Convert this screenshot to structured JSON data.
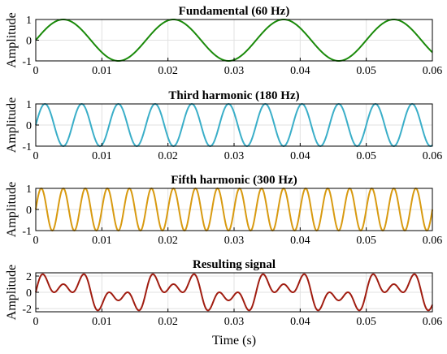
{
  "chart_data": [
    {
      "type": "line",
      "title": "Fundamental (60 Hz)",
      "ylabel": "Amplitude",
      "xlabel": "",
      "xlim": [
        0,
        0.06
      ],
      "ylim": [
        -1,
        1
      ],
      "xticks": [
        "0",
        "0.01",
        "0.02",
        "0.03",
        "0.04",
        "0.05",
        "0.06"
      ],
      "yticks": [
        "1",
        "0",
        "-1"
      ],
      "grid": true,
      "series": [
        {
          "function": "sin(2*pi*60*t)",
          "frequency_hz": 60,
          "amplitude": 1,
          "color": "#1a8a0a"
        }
      ]
    },
    {
      "type": "line",
      "title": "Third harmonic (180 Hz)",
      "ylabel": "Amplitude",
      "xlabel": "",
      "xlim": [
        0,
        0.06
      ],
      "ylim": [
        -1,
        1
      ],
      "xticks": [
        "0",
        "0.01",
        "0.02",
        "0.03",
        "0.04",
        "0.05",
        "0.06"
      ],
      "yticks": [
        "1",
        "0",
        "-1"
      ],
      "grid": true,
      "series": [
        {
          "function": "sin(2*pi*180*t)",
          "frequency_hz": 180,
          "amplitude": 1,
          "color": "#3aaec8"
        }
      ]
    },
    {
      "type": "line",
      "title": "Fifth harmonic (300 Hz)",
      "ylabel": "Amplitude",
      "xlabel": "",
      "xlim": [
        0,
        0.06
      ],
      "ylim": [
        -1,
        1
      ],
      "xticks": [
        "0",
        "0.01",
        "0.02",
        "0.03",
        "0.04",
        "0.05",
        "0.06"
      ],
      "yticks": [
        "1",
        "0",
        "-1"
      ],
      "grid": true,
      "series": [
        {
          "function": "sin(2*pi*300*t)",
          "frequency_hz": 300,
          "amplitude": 1,
          "color": "#d89a10"
        }
      ]
    },
    {
      "type": "line",
      "title": "Resulting signal",
      "ylabel": "Amplitude",
      "xlabel": "Time (s)",
      "xlim": [
        0,
        0.06
      ],
      "ylim": [
        -2.4,
        2.4
      ],
      "xticks": [
        "0",
        "0.01",
        "0.02",
        "0.03",
        "0.04",
        "0.05",
        "0.06"
      ],
      "yticks": [
        "2",
        "0",
        "-2"
      ],
      "grid": true,
      "series": [
        {
          "function": "sin(2*pi*60*t) + sin(2*pi*180*t) + sin(2*pi*300*t)",
          "components_hz": [
            60,
            180,
            300
          ],
          "color": "#a01c10"
        }
      ]
    }
  ]
}
